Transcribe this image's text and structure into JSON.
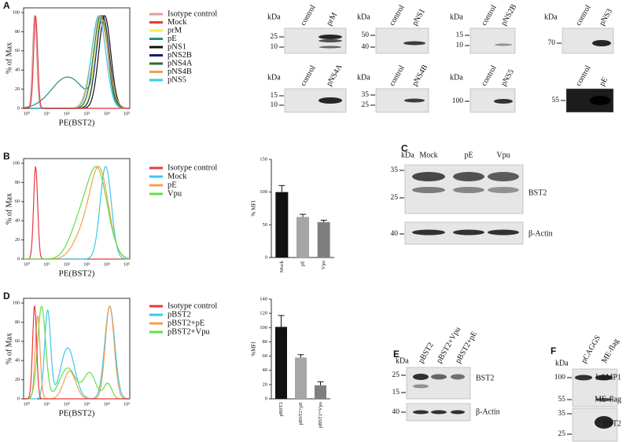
{
  "panel_labels": [
    "A",
    "B",
    "C",
    "D",
    "E",
    "F"
  ],
  "histograms": [
    {
      "y_label": "% of Max",
      "x_label": "PE(BST2)",
      "ylim": [
        0,
        100
      ],
      "yticks": [
        0,
        20,
        40,
        60,
        80,
        100
      ],
      "xticks": [
        "10⁰",
        "10¹",
        "10²",
        "10³",
        "10⁴",
        "10⁵"
      ],
      "legend": [
        {
          "name": "Isotype control",
          "color": "#d9a0a0"
        },
        {
          "name": "Mock",
          "color": "#e8393b"
        },
        {
          "name": "prM",
          "color": "#eeee55"
        },
        {
          "name": "pE",
          "color": "#1f8f80"
        },
        {
          "name": "pNS1",
          "color": "#111111"
        },
        {
          "name": "pNS2B",
          "color": "#1a1a6e"
        },
        {
          "name": "pNS4A",
          "color": "#2e6b2e"
        },
        {
          "name": "pNS4B",
          "color": "#f0a050"
        },
        {
          "name": "pNS5",
          "color": "#3cc8e8"
        }
      ]
    },
    {
      "y_label": "% of Max",
      "x_label": "PE(BST2)",
      "ylim": [
        0,
        100
      ],
      "yticks": [
        0,
        20,
        40,
        60,
        80,
        100
      ],
      "xticks": [
        "10⁰",
        "10¹",
        "10²",
        "10³",
        "10⁴",
        "10⁵"
      ],
      "legend": [
        {
          "name": "Isotype control",
          "color": "#e8393b"
        },
        {
          "name": "Mock",
          "color": "#3cc8e8"
        },
        {
          "name": "pE",
          "color": "#f0a050"
        },
        {
          "name": "Vpu",
          "color": "#66dd44"
        }
      ]
    },
    {
      "y_label": "% of Max",
      "x_label": "PE(BST2)",
      "ylim": [
        0,
        100
      ],
      "yticks": [
        0,
        20,
        40,
        60,
        80,
        100
      ],
      "xticks": [
        "10⁰",
        "10¹",
        "10²",
        "10³",
        "10⁴",
        "10⁵"
      ],
      "legend": [
        {
          "name": "Isotype control",
          "color": "#e8393b"
        },
        {
          "name": "pBST2",
          "color": "#3cc8e8"
        },
        {
          "name": "pBST2+pE",
          "color": "#f0a050"
        },
        {
          "name": "pBST2+Vpu",
          "color": "#66dd44"
        }
      ]
    }
  ],
  "blots": [
    {
      "unit": "kDa",
      "lanes": [
        "control",
        "prM"
      ],
      "markers": [
        25,
        10
      ]
    },
    {
      "unit": "kDa",
      "lanes": [
        "control",
        "pNS1"
      ],
      "markers": [
        50,
        40
      ]
    },
    {
      "unit": "kDa",
      "lanes": [
        "control",
        "pNS2B"
      ],
      "markers": [
        15,
        10
      ]
    },
    {
      "unit": "kDa",
      "lanes": [
        "control",
        "pNS3"
      ],
      "markers": [
        70
      ]
    },
    {
      "unit": "kDa",
      "lanes": [
        "control",
        "pNS4A"
      ],
      "markers": [
        15,
        10
      ]
    },
    {
      "unit": "kDa",
      "lanes": [
        "control",
        "pNS4B"
      ],
      "markers": [
        35,
        25
      ]
    },
    {
      "unit": "kDa",
      "lanes": [
        "control",
        "pNS5"
      ],
      "markers": [
        100
      ]
    },
    {
      "lanes": [
        "control",
        "pE"
      ],
      "markers": [
        55
      ]
    },
    {
      "unit": "kDa",
      "lanes": [
        "Mock",
        "pE",
        "Vpu"
      ],
      "markers": [
        35,
        25,
        40
      ],
      "labels": [
        "BST2",
        "β-Actin"
      ]
    },
    {
      "unit": "kDa",
      "lanes": [
        "pBST2",
        "pBST2+Vpu",
        "pBST2+pE"
      ],
      "markers": [
        25,
        15,
        40
      ],
      "labels": [
        "BST2",
        "β-Actin"
      ]
    },
    {
      "unit": "kDa",
      "lanes": [
        "pCAGGS",
        "ME-flag"
      ],
      "markers": [
        100,
        55,
        35,
        25
      ],
      "labels": [
        "LAMP1",
        "ME-flag",
        "BST2"
      ]
    }
  ],
  "chart_data": [
    {
      "type": "bar",
      "y_label": "% MFI",
      "categories": [
        "Mock",
        "pE",
        "Vpu"
      ],
      "values": [
        100,
        62,
        54
      ],
      "errors": [
        10,
        4,
        3
      ],
      "colors": [
        "#111111",
        "#a6a6a6",
        "#7f7f7f"
      ],
      "ylim": [
        0,
        150
      ],
      "yticks": [
        0,
        50,
        100,
        150
      ]
    },
    {
      "type": "bar",
      "y_label": "%MFI",
      "categories": [
        "pBST2",
        "pBST2+pE",
        "pBST2+Vpu"
      ],
      "values": [
        101,
        58,
        19
      ],
      "errors": [
        16,
        4,
        5
      ],
      "colors": [
        "#111111",
        "#a6a6a6",
        "#7f7f7f"
      ],
      "ylim": [
        0,
        140
      ],
      "yticks": [
        0,
        20,
        40,
        60,
        80,
        100,
        120,
        140
      ]
    }
  ]
}
